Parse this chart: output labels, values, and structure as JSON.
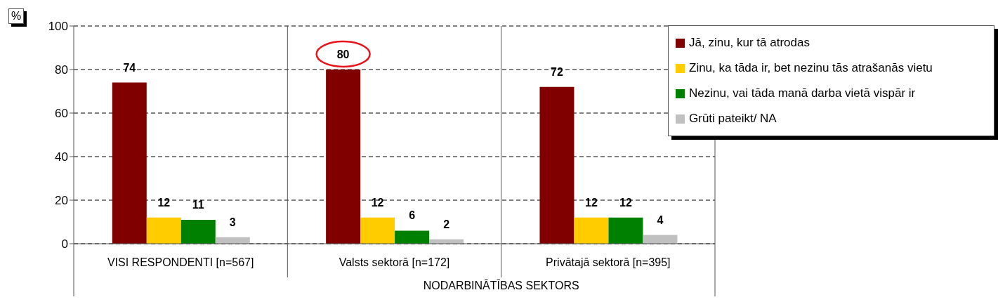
{
  "chart_data": {
    "type": "bar",
    "ylabel": "%",
    "categories": [
      "VISI RESPONDENTI [n=567]",
      "Valsts sektorā [n=172]",
      "Privātajā sektorā [n=395]"
    ],
    "series": [
      {
        "name": "Jā, zinu, kur tā atrodas",
        "color": "#800000",
        "values": [
          74,
          80,
          72
        ]
      },
      {
        "name": "Zinu, ka tāda ir, bet nezinu tās atrašanās vietu",
        "color": "#ffcc00",
        "values": [
          12,
          12,
          12
        ]
      },
      {
        "name": "Nezinu, vai tāda manā darba vietā vispār ir",
        "color": "#008000",
        "values": [
          11,
          6,
          12
        ]
      },
      {
        "name": "Grūti pateikt/ NA",
        "color": "#c0c0c0",
        "values": [
          3,
          2,
          4
        ]
      }
    ],
    "ylim": [
      0,
      100
    ],
    "yticks": [
      0,
      20,
      40,
      60,
      80,
      100
    ],
    "grid": "y",
    "legend": "top right",
    "data_labels": true,
    "annotations": [
      "NODARBINĀTĪBAS SEKTORS"
    ]
  }
}
